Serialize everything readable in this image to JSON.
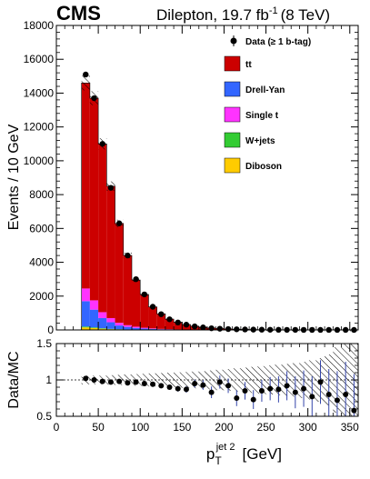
{
  "header": {
    "experiment": "CMS",
    "channel_prefix": "Dilepton, 19.7 fb",
    "lumi_exponent": "-1",
    "energy": "(8 TeV)"
  },
  "legend": {
    "data_label": "Data (≥ 1 b-tag)",
    "entries": [
      {
        "label": "tt",
        "color": "#cc0000"
      },
      {
        "label": "Drell-Yan",
        "color": "#3366ff"
      },
      {
        "label": "Single t",
        "color": "#ff33ff"
      },
      {
        "label": "W+jets",
        "color": "#33cc33"
      },
      {
        "label": "Diboson",
        "color": "#ffcc00"
      }
    ]
  },
  "chart_data": [
    {
      "type": "bar",
      "stacked": true,
      "ylabel": "Events / 10 GeV",
      "xlim": [
        0,
        360
      ],
      "ylim": [
        0,
        18000
      ],
      "yticks": [
        0,
        2000,
        4000,
        6000,
        8000,
        10000,
        12000,
        14000,
        16000,
        18000
      ],
      "xticks": [
        0,
        50,
        100,
        150,
        200,
        250,
        300,
        350
      ],
      "bin_edges": [
        30,
        40,
        50,
        60,
        70,
        80,
        90,
        100,
        110,
        120,
        130,
        140,
        150,
        160,
        170,
        180,
        190,
        200,
        210,
        220,
        230,
        240,
        250,
        260,
        270,
        280,
        290,
        300,
        310,
        320,
        330,
        340,
        350,
        360
      ],
      "series": [
        {
          "name": "Diboson",
          "color": "#ffcc00",
          "values": [
            150,
            110,
            70,
            45,
            30,
            20,
            14,
            9,
            6,
            4,
            3,
            2,
            2,
            1,
            1,
            1,
            1,
            0,
            0,
            0,
            0,
            0,
            0,
            0,
            0,
            0,
            0,
            0,
            0,
            0,
            0,
            0,
            0
          ]
        },
        {
          "name": "W+jets",
          "color": "#33cc33",
          "values": [
            50,
            40,
            30,
            20,
            15,
            10,
            7,
            5,
            3,
            2,
            2,
            1,
            1,
            1,
            0,
            0,
            0,
            0,
            0,
            0,
            0,
            0,
            0,
            0,
            0,
            0,
            0,
            0,
            0,
            0,
            0,
            0,
            0
          ]
        },
        {
          "name": "Drell-Yan",
          "color": "#3366ff",
          "values": [
            1500,
            1050,
            600,
            390,
            220,
            150,
            100,
            70,
            50,
            35,
            25,
            18,
            13,
            10,
            7,
            5,
            4,
            3,
            2,
            2,
            1,
            1,
            1,
            1,
            0,
            0,
            0,
            0,
            0,
            0,
            0,
            0,
            0
          ]
        },
        {
          "name": "Single t",
          "color": "#ff33ff",
          "values": [
            750,
            550,
            350,
            245,
            155,
            100,
            70,
            45,
            30,
            20,
            15,
            10,
            7,
            5,
            4,
            3,
            2,
            2,
            1,
            1,
            1,
            1,
            0,
            0,
            0,
            0,
            0,
            0,
            0,
            0,
            0,
            0,
            0
          ]
        },
        {
          "name": "tt",
          "color": "#cc0000",
          "values": [
            12150,
            11950,
            9950,
            7800,
            5880,
            4120,
            2760,
            1970,
            1270,
            890,
            600,
            420,
            300,
            210,
            150,
            105,
            75,
            55,
            40,
            30,
            22,
            17,
            13,
            10,
            8,
            6,
            5,
            4,
            3,
            2,
            2,
            1,
            1
          ]
        }
      ],
      "data_points": {
        "name": "Data (≥ 1 b-tag)",
        "values": [
          15100,
          13700,
          11000,
          8400,
          6300,
          4400,
          3000,
          2100,
          1370,
          930,
          630,
          440,
          310,
          210,
          150,
          100,
          72,
          52,
          38,
          28,
          20,
          15,
          11,
          8,
          6,
          5,
          4,
          3,
          2,
          2,
          1,
          1,
          1
        ]
      }
    },
    {
      "type": "scatter",
      "ylabel": "Data/MC",
      "xlabel": "p_T^{jet 2} [GeV]",
      "xlim": [
        0,
        360
      ],
      "ylim": [
        0.5,
        1.5
      ],
      "yticks": [
        0.5,
        1,
        1.5
      ],
      "xticks": [
        0,
        50,
        100,
        150,
        200,
        250,
        300,
        350
      ],
      "x": [
        35,
        45,
        55,
        65,
        75,
        85,
        95,
        105,
        115,
        125,
        135,
        145,
        155,
        165,
        175,
        185,
        195,
        205,
        215,
        225,
        235,
        245,
        255,
        265,
        275,
        285,
        295,
        305,
        315,
        325,
        335,
        345,
        355
      ],
      "y": [
        1.02,
        1.0,
        0.98,
        0.97,
        0.98,
        0.96,
        0.97,
        0.95,
        0.94,
        0.92,
        0.9,
        0.88,
        0.87,
        0.95,
        0.93,
        0.83,
        0.97,
        0.92,
        0.75,
        0.85,
        0.73,
        0.85,
        0.88,
        0.87,
        0.92,
        0.83,
        0.88,
        0.77,
        0.97,
        0.8,
        0.72,
        0.8,
        0.58
      ],
      "err": [
        0.005,
        0.006,
        0.007,
        0.008,
        0.01,
        0.012,
        0.015,
        0.018,
        0.022,
        0.027,
        0.032,
        0.04,
        0.045,
        0.055,
        0.065,
        0.08,
        0.09,
        0.1,
        0.11,
        0.12,
        0.13,
        0.15,
        0.16,
        0.18,
        0.2,
        0.22,
        0.25,
        0.28,
        0.3,
        0.35,
        0.4,
        0.45,
        0.5
      ],
      "band": [
        0.06,
        0.06,
        0.06,
        0.065,
        0.07,
        0.075,
        0.08,
        0.085,
        0.09,
        0.095,
        0.1,
        0.105,
        0.11,
        0.115,
        0.12,
        0.13,
        0.14,
        0.15,
        0.16,
        0.17,
        0.18,
        0.19,
        0.2,
        0.21,
        0.22,
        0.23,
        0.25,
        0.27,
        0.3,
        0.35,
        0.45,
        0.5,
        0.5
      ]
    }
  ]
}
